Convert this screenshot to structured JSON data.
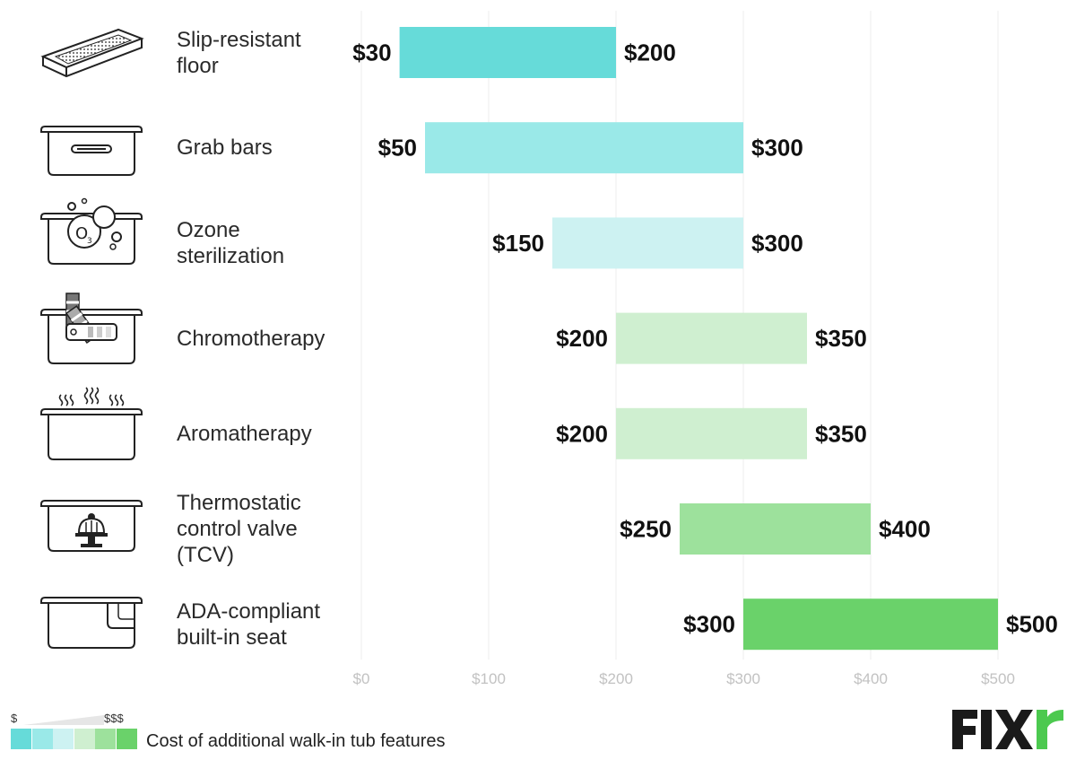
{
  "chart_data": {
    "type": "bar",
    "orientation": "horizontal-range",
    "categories": [
      "Slip-resistant floor",
      "Grab bars",
      "Ozone sterilization",
      "Chromotherapy",
      "Aromatherapy",
      "Thermostatic control valve (TCV)",
      "ADA-compliant built-in seat"
    ],
    "label_lines": [
      [
        "Slip-resistant",
        "floor"
      ],
      [
        "Grab bars"
      ],
      [
        "Ozone",
        "sterilization"
      ],
      [
        "Chromotherapy"
      ],
      [
        "Aromatherapy"
      ],
      [
        "Thermostatic",
        "control valve",
        "(TCV)"
      ],
      [
        "ADA-compliant",
        "built-in seat"
      ]
    ],
    "low": [
      30,
      50,
      150,
      200,
      200,
      250,
      300
    ],
    "high": [
      200,
      300,
      300,
      350,
      350,
      400,
      500
    ],
    "low_labels": [
      "$30",
      "$50",
      "$150",
      "$200",
      "$200",
      "$250",
      "$300"
    ],
    "high_labels": [
      "$200",
      "$300",
      "$300",
      "$350",
      "$350",
      "$400",
      "$500"
    ],
    "bar_colors": [
      "#66dbd9",
      "#9ae9e8",
      "#cdf2f2",
      "#cfefd0",
      "#cfefd0",
      "#9de19c",
      "#6ad26a"
    ],
    "xlim": [
      0,
      500
    ],
    "xticks": [
      0,
      100,
      200,
      300,
      400,
      500
    ],
    "xtick_labels": [
      "$0",
      "$100",
      "$200",
      "$300",
      "$400",
      "$500"
    ],
    "grid": true,
    "title": "",
    "xlabel": "",
    "ylabel": ""
  },
  "icons": [
    "non-slip-tray-icon",
    "tub-grab-bar-icon",
    "ozone-bubbles-tub-icon",
    "color-swatch-tub-icon",
    "steam-tub-icon",
    "thermostat-valve-tub-icon",
    "tub-seat-icon"
  ],
  "legend": {
    "min_label": "$",
    "max_label": "$$$",
    "caption": "Cost of additional walk-in tub features",
    "swatch_colors": [
      "#66dbd9",
      "#9ae9e8",
      "#cdf2f2",
      "#cfefd0",
      "#9de19c",
      "#6ad26a"
    ]
  },
  "brand": {
    "name": "FIXR"
  }
}
